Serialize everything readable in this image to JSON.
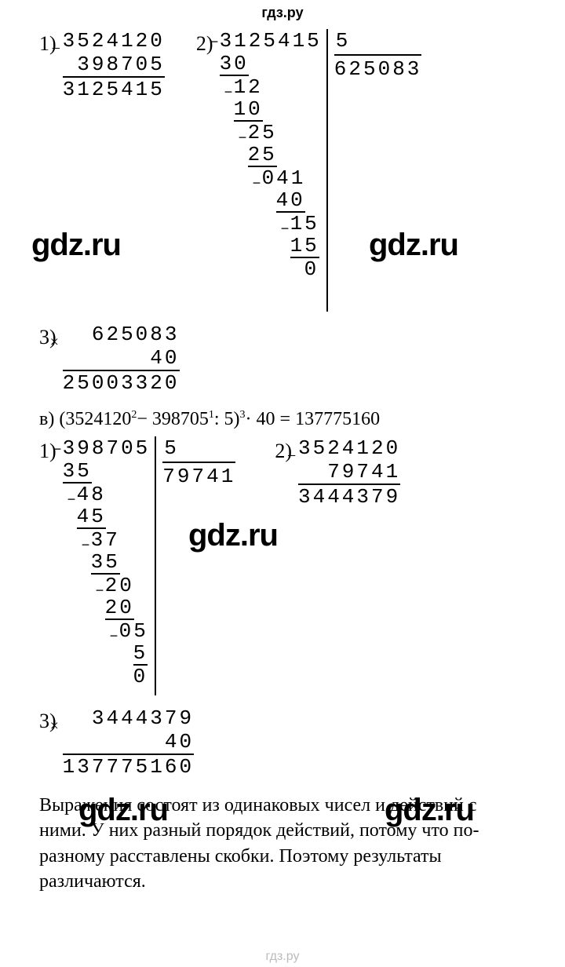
{
  "header": {
    "title": "гдз.ру"
  },
  "watermarks": {
    "w1": "gdz.ru",
    "w2": "gdz.ru",
    "w3": "gdz.ru",
    "w4": "gdz.ru",
    "w5": "gdz.ru",
    "w6": "gdz.ru"
  },
  "block1": {
    "p1": {
      "label": "1)",
      "minuend": "3524120",
      "subtrahend": "398705",
      "result": "3125415"
    },
    "p2": {
      "label": "2)",
      "dividend": "3125415",
      "divisor": "5",
      "quotient": "625083",
      "steps": [
        {
          "sub": "30",
          "pad": 0
        },
        {
          "rem": "12",
          "pad": 1
        },
        {
          "sub": "10",
          "pad": 1
        },
        {
          "rem": "25",
          "pad": 2
        },
        {
          "sub": "25",
          "pad": 2
        },
        {
          "rem": "041",
          "pad": 3
        },
        {
          "sub": "40",
          "pad": 4
        },
        {
          "rem": "15",
          "pad": 5
        },
        {
          "sub": "15",
          "pad": 5
        },
        {
          "rem": "0",
          "pad": 6
        }
      ]
    },
    "p3": {
      "label": "3)",
      "multiplicand": "625083",
      "multiplier": "40",
      "result": "25003320"
    }
  },
  "expr_v": {
    "label": "в)",
    "text_a": "(3524120",
    "sup1": "2",
    "op1": "−",
    "text_b": "398705",
    "sup2": "1",
    "op2": ":",
    "text_c": "5)",
    "sup3": "3",
    "op3": "·",
    "text_d": "40 = 137775160"
  },
  "block2": {
    "p1": {
      "label": "1)",
      "dividend": "398705",
      "divisor": "5",
      "quotient": "79741",
      "steps": [
        {
          "sub": "35",
          "pad": 0
        },
        {
          "rem": "48",
          "pad": 1
        },
        {
          "sub": "45",
          "pad": 1
        },
        {
          "rem": "37",
          "pad": 2
        },
        {
          "sub": "35",
          "pad": 2
        },
        {
          "rem": "20",
          "pad": 3
        },
        {
          "sub": "20",
          "pad": 3
        },
        {
          "rem": "05",
          "pad": 4
        },
        {
          "sub": "5",
          "pad": 5
        },
        {
          "rem": "0",
          "pad": 5
        }
      ]
    },
    "p2": {
      "label": "2)",
      "minuend": "3524120",
      "subtrahend": "79741",
      "result": "3444379"
    },
    "p3": {
      "label": "3)",
      "multiplicand": "3444379",
      "multiplier": "40",
      "result": "137775160"
    }
  },
  "footer": {
    "text": "Выражения состоят из одинаковых чисел и действий с ними. У них разный порядок действий, потому что по-разному расставлены скобки. Поэтому результаты различаются."
  },
  "footer_wm": "гдз.ру"
}
